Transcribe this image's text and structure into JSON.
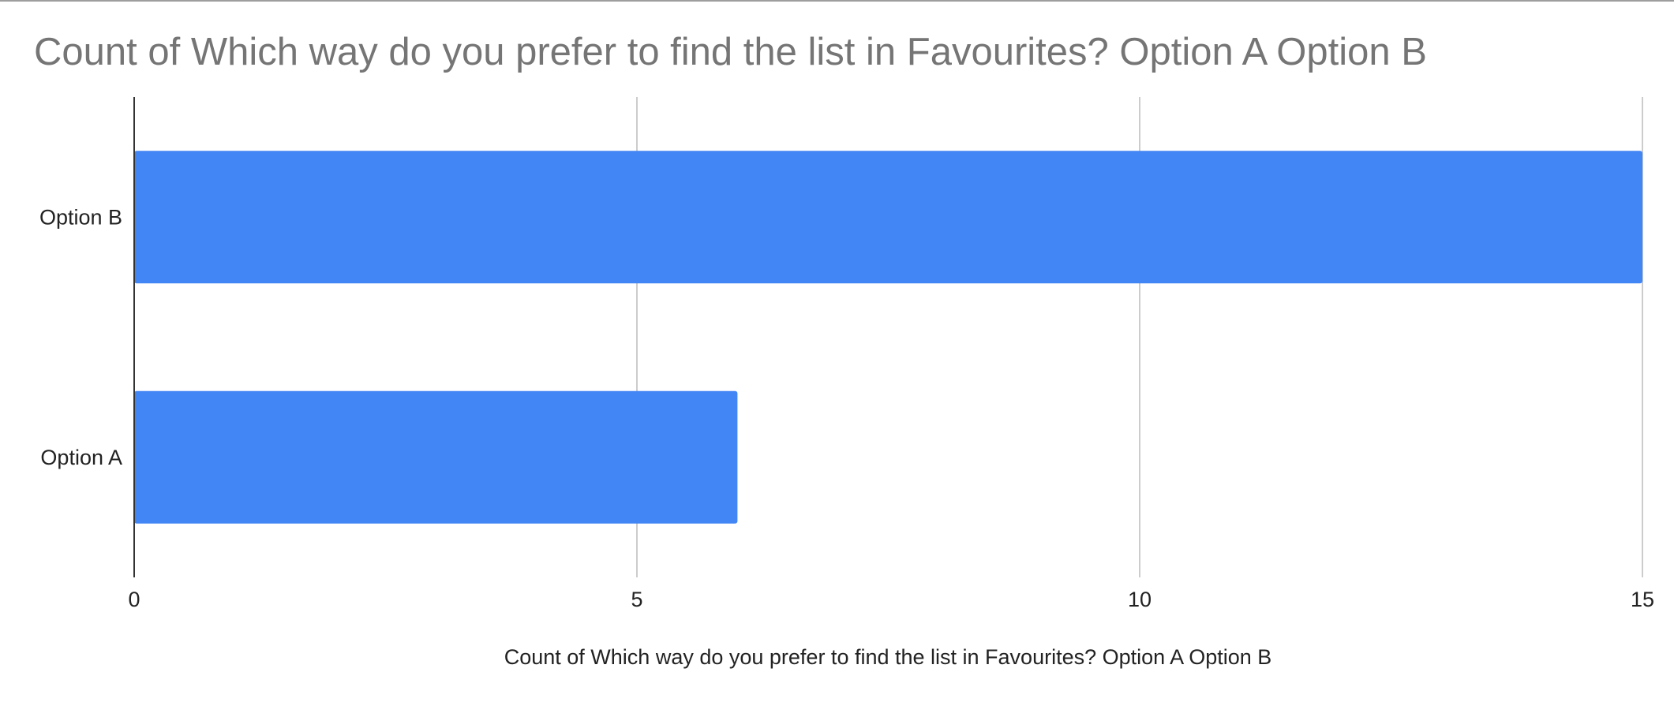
{
  "chart_data": {
    "type": "bar",
    "orientation": "horizontal",
    "title": "Count of Which way do you prefer to find the list in Favourites? Option A Option B",
    "xlabel": "Count of Which way do you prefer to find the list in Favourites? Option A Option B",
    "ylabel": "",
    "categories": [
      "Option B",
      "Option A"
    ],
    "values": [
      15,
      6
    ],
    "xlim": [
      0,
      15
    ],
    "xticks": [
      0,
      5,
      10,
      15
    ],
    "grid": true,
    "legend": "none",
    "colors": {
      "bar": "#4285f4",
      "grid": "#cccccc",
      "axis": "#333333",
      "title": "#757575",
      "text": "#222222"
    }
  }
}
